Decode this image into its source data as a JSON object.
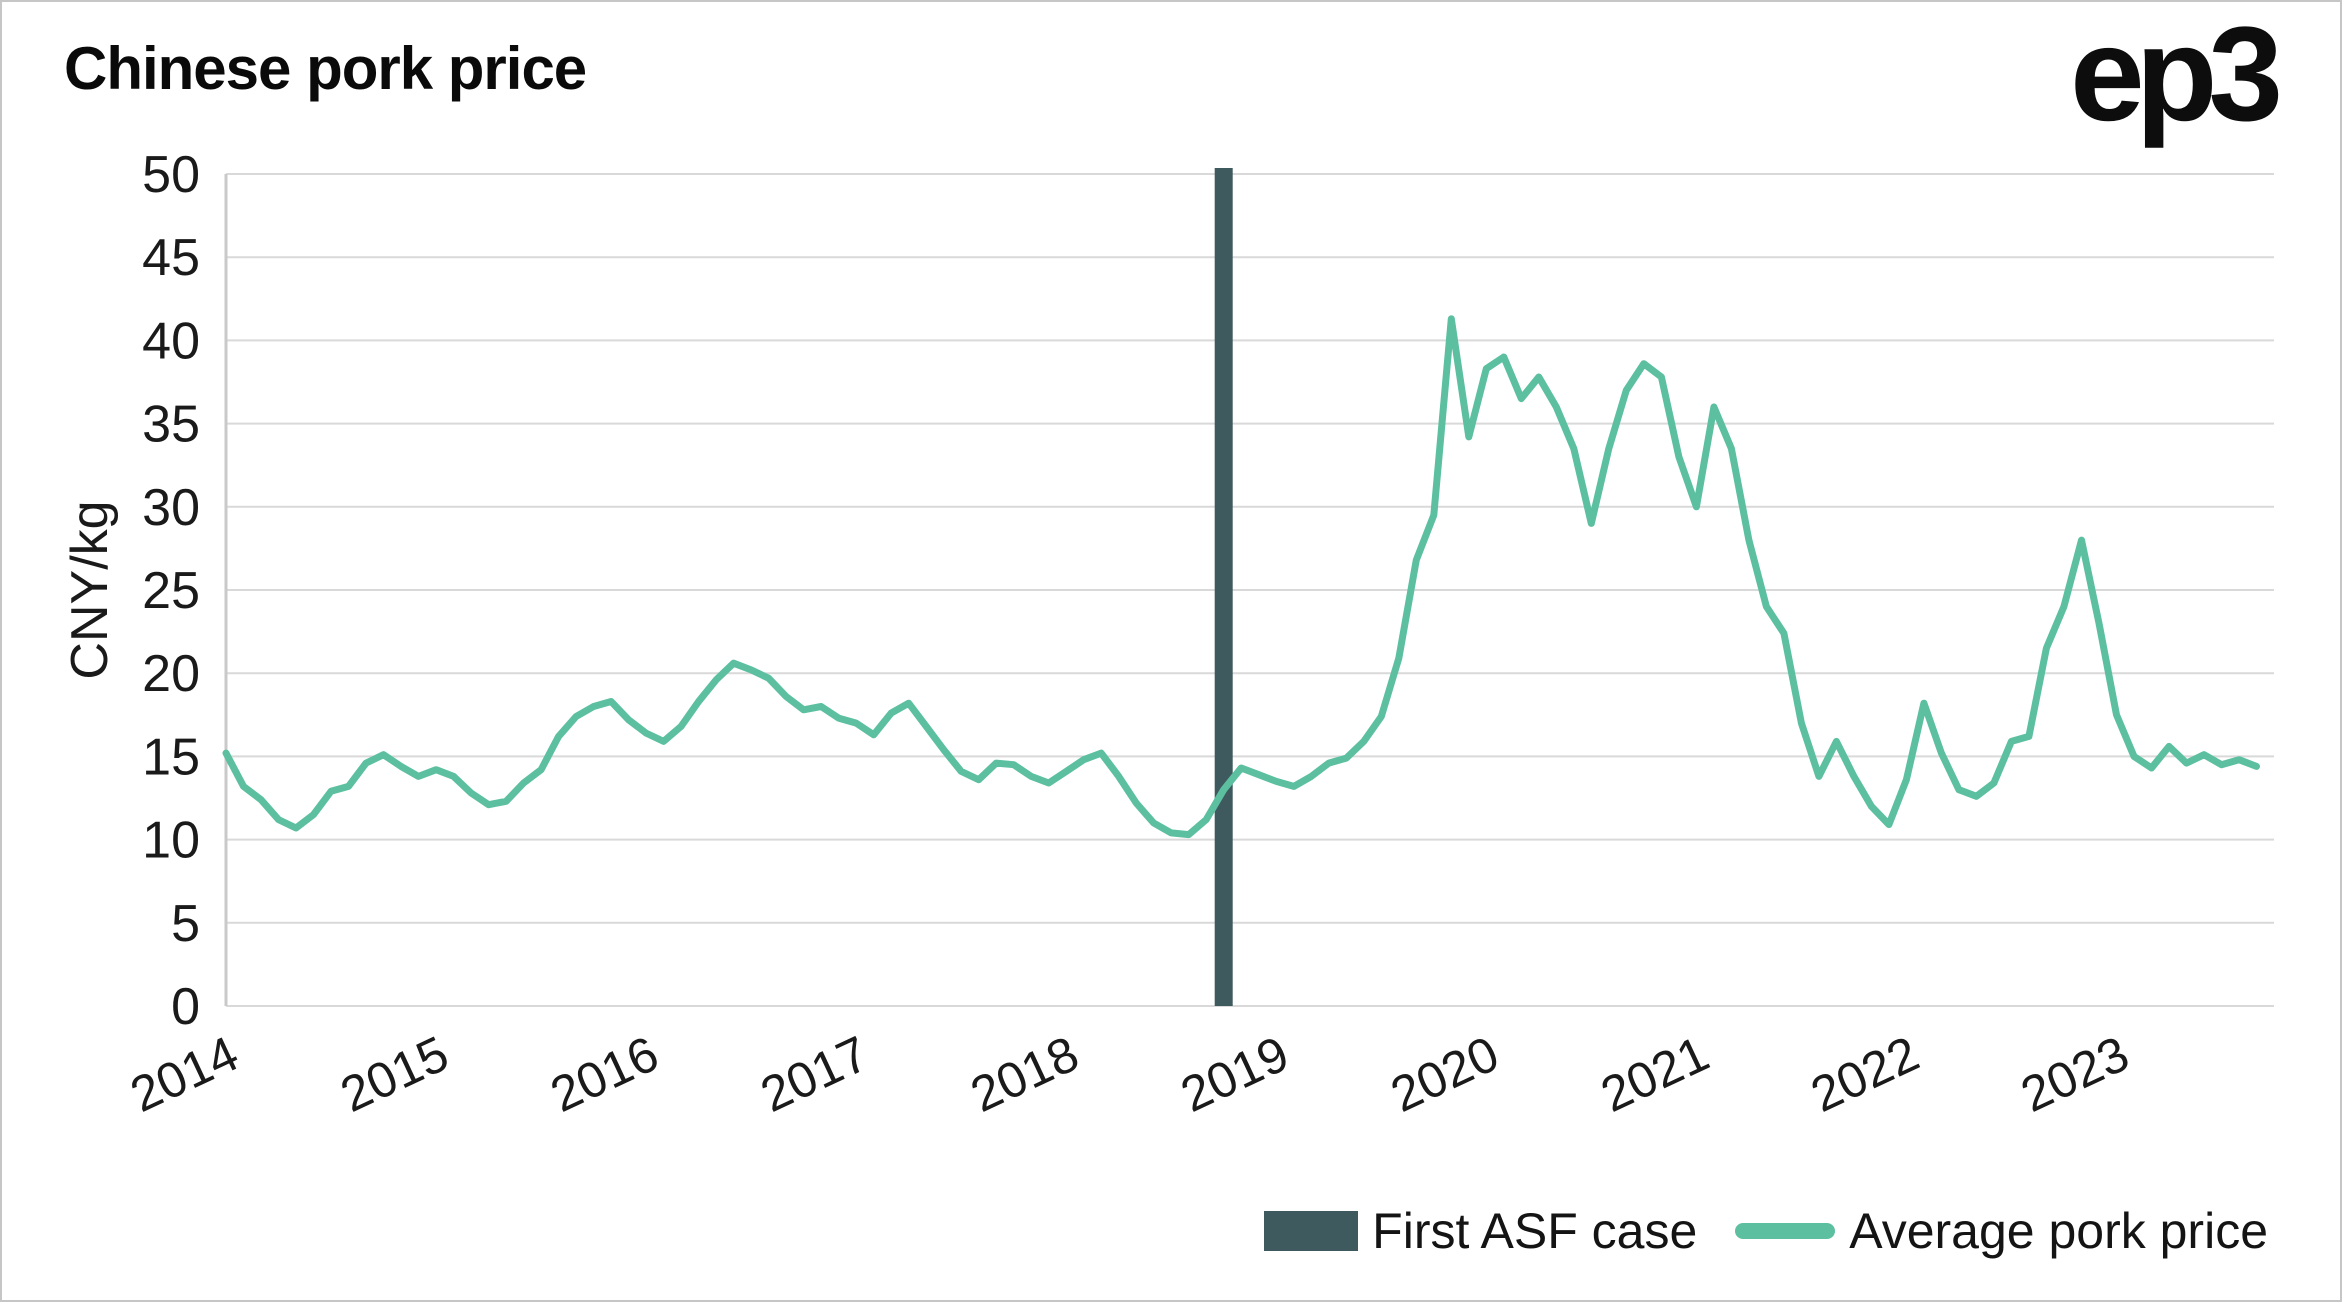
{
  "header": {
    "title": "Chinese pork price",
    "logo": "ep3"
  },
  "legend": {
    "items": [
      {
        "label": "First ASF case",
        "swatch": "bar",
        "color": "#3e5a5e"
      },
      {
        "label": "Average pork price",
        "swatch": "line",
        "color": "#5cc0a0"
      }
    ]
  },
  "colors": {
    "line": "#5cc0a0",
    "asf_bar": "#3e5a5e",
    "gridline": "#d9d9d9",
    "text": "#1a1a1a"
  },
  "chart_data": {
    "type": "line",
    "title": "Chinese pork price",
    "xlabel": "",
    "ylabel": "CNY/kg",
    "ylim": [
      0,
      50
    ],
    "xlim": [
      2014,
      2023.75
    ],
    "yticks": [
      0,
      5,
      10,
      15,
      20,
      25,
      30,
      35,
      40,
      45,
      50
    ],
    "xticks": [
      2014,
      2015,
      2016,
      2017,
      2018,
      2019,
      2020,
      2021,
      2022,
      2023
    ],
    "grid": "horizontal",
    "legend_position": "bottom-right",
    "annotation": {
      "label": "First ASF case",
      "type": "vertical-bar",
      "x": 2018.75,
      "color": "#3e5a5e"
    },
    "series": [
      {
        "name": "Average pork price",
        "color": "#5cc0a0",
        "x_start": 2014.0,
        "x_step_months": 1,
        "values": [
          15.2,
          13.2,
          12.4,
          11.2,
          10.7,
          11.5,
          12.9,
          13.2,
          14.6,
          15.1,
          14.4,
          13.8,
          14.2,
          13.8,
          12.8,
          12.1,
          12.3,
          13.4,
          14.2,
          16.2,
          17.4,
          18.0,
          18.3,
          17.2,
          16.4,
          15.9,
          16.8,
          18.3,
          19.6,
          20.6,
          20.2,
          19.7,
          18.6,
          17.8,
          18.0,
          17.3,
          17.0,
          16.3,
          17.6,
          18.2,
          16.8,
          15.4,
          14.1,
          13.6,
          14.6,
          14.5,
          13.8,
          13.4,
          14.1,
          14.8,
          15.2,
          13.8,
          12.2,
          11.0,
          10.4,
          10.3,
          11.2,
          13.0,
          14.3,
          13.9,
          13.5,
          13.2,
          13.8,
          14.6,
          14.9,
          15.9,
          17.4,
          20.9,
          26.8,
          29.5,
          41.3,
          34.2,
          38.3,
          39.0,
          36.5,
          37.8,
          36.0,
          33.5,
          29.0,
          33.5,
          37.0,
          38.6,
          37.8,
          33.0,
          30.0,
          36.0,
          33.5,
          28.0,
          24.0,
          22.4,
          17.0,
          13.8,
          15.9,
          13.8,
          12.0,
          10.9,
          13.6,
          18.2,
          15.2,
          13.0,
          12.6,
          13.4,
          15.9,
          16.2,
          21.5,
          24.0,
          28.0,
          23.0,
          17.5,
          15.0,
          14.3,
          15.6,
          14.6,
          15.1,
          14.5,
          14.8,
          14.4
        ]
      }
    ]
  }
}
